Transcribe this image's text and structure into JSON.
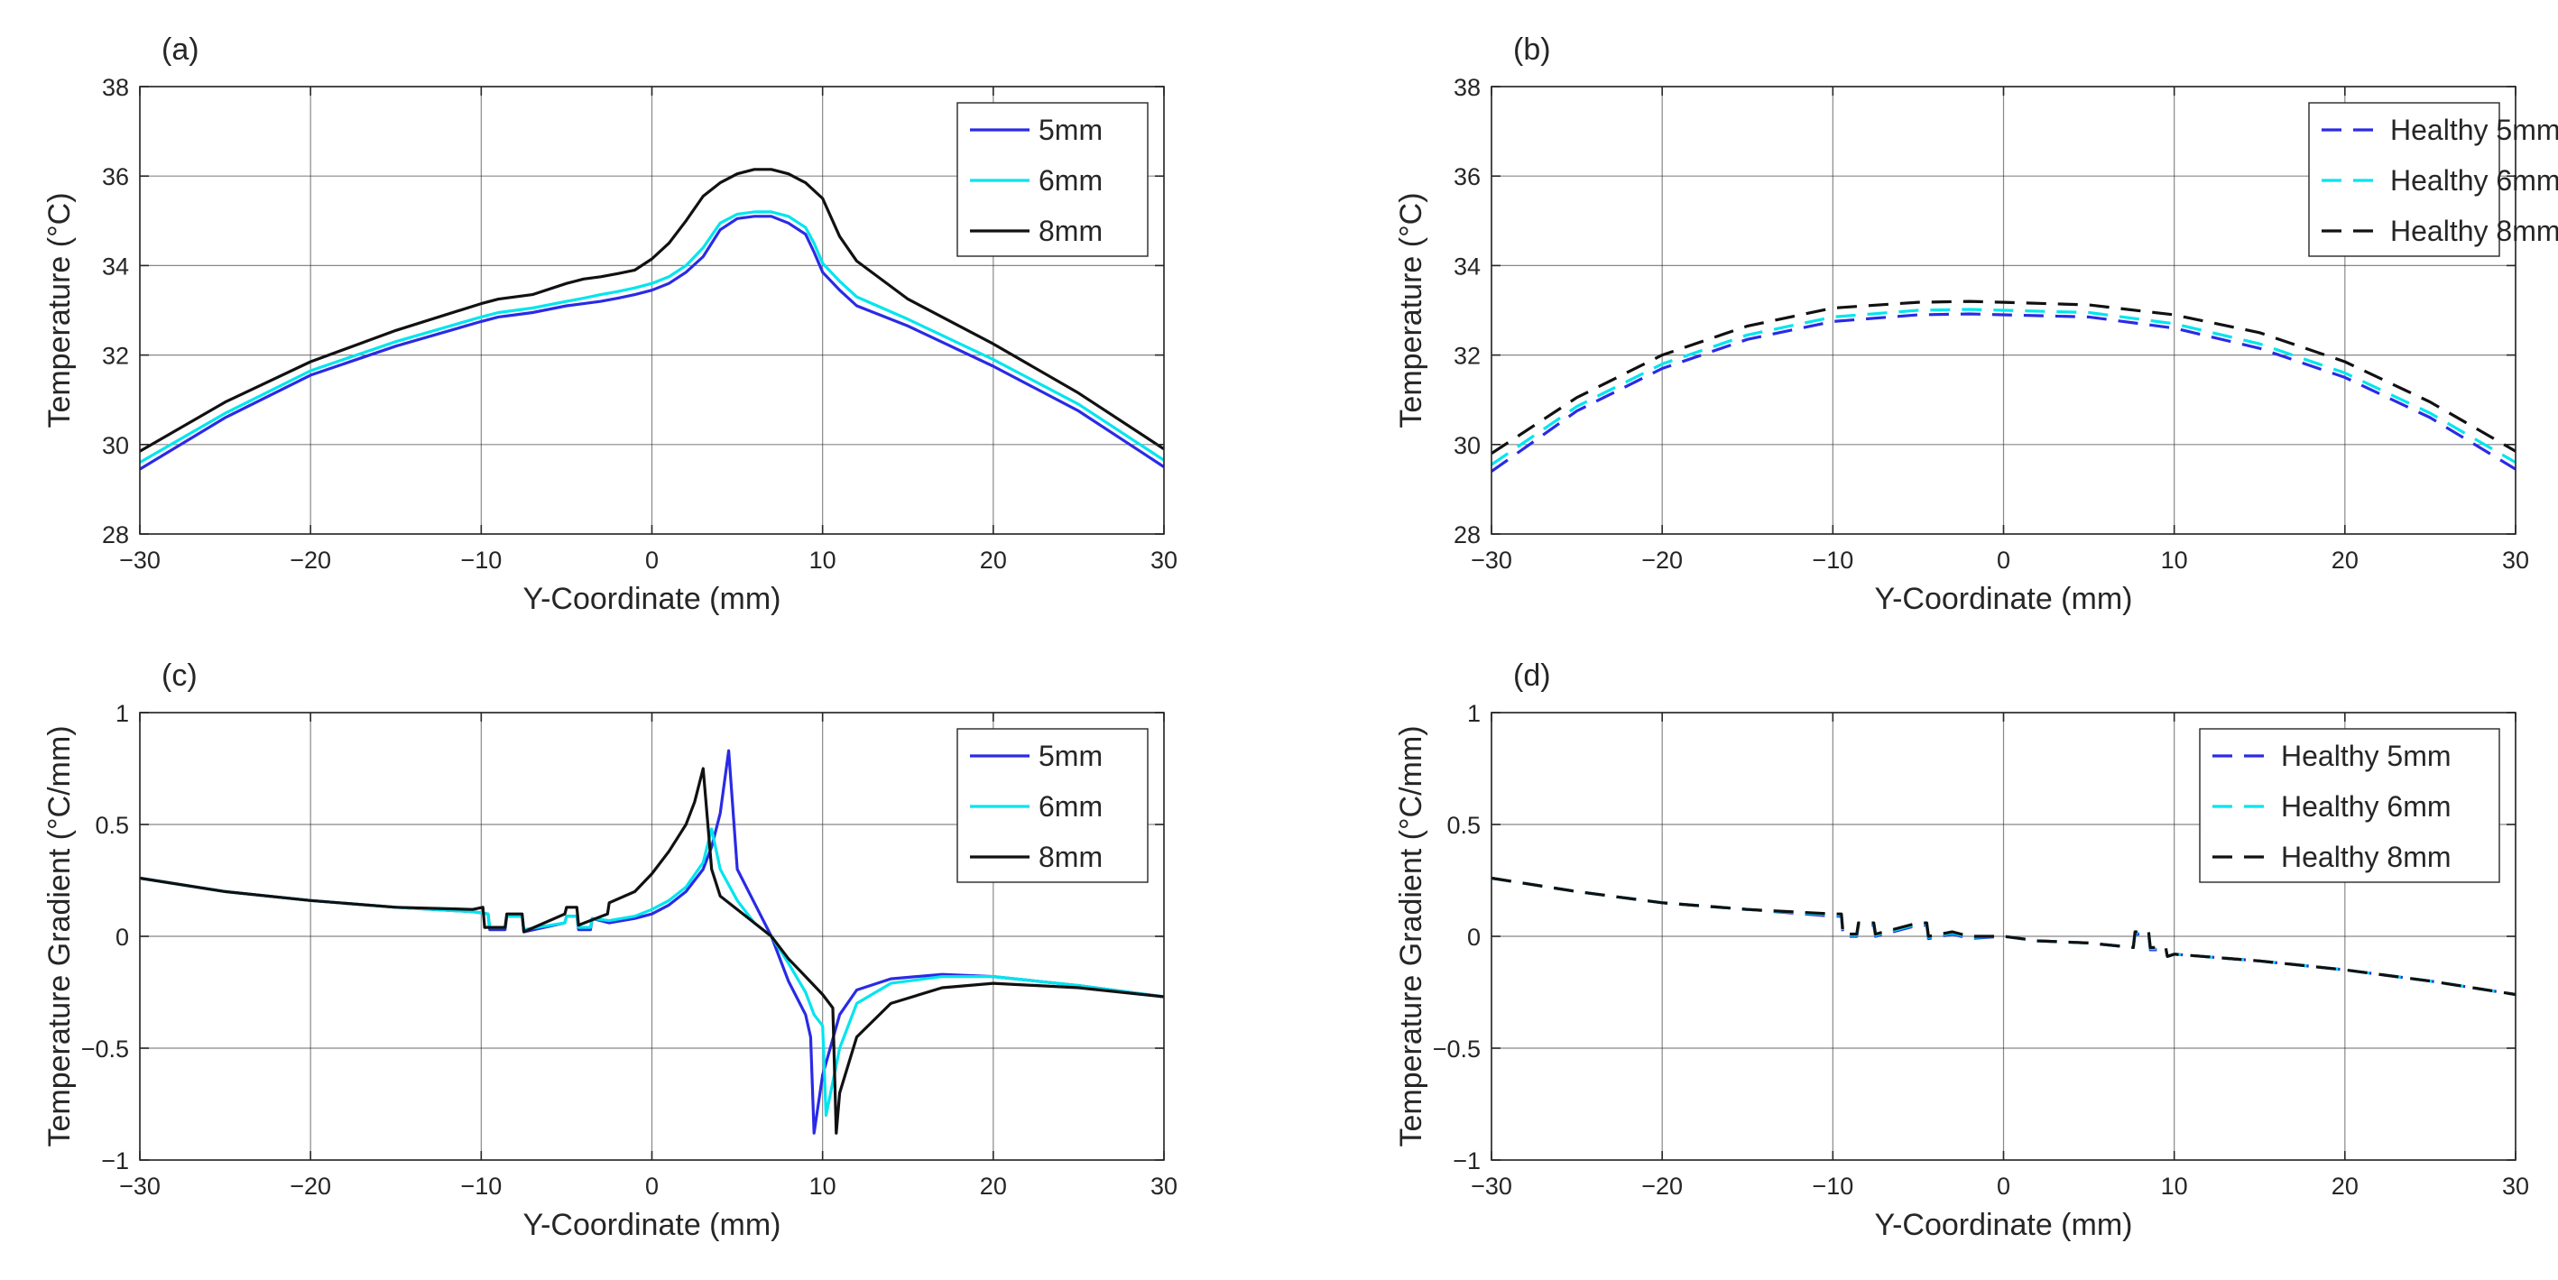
{
  "chart_data": [
    {
      "id": "a",
      "type": "line",
      "panel_label": "(a)",
      "xlabel": "Y-Coordinate (mm)",
      "ylabel": "Temperature (°C)",
      "xlim": [
        -30,
        30
      ],
      "ylim": [
        28,
        38
      ],
      "xticks": [
        -30,
        -20,
        -10,
        0,
        10,
        20,
        30
      ],
      "xtick_labels": [
        "−30",
        "−20",
        "−10",
        "0",
        "10",
        "20",
        "30"
      ],
      "yticks": [
        28,
        30,
        32,
        34,
        36,
        38
      ],
      "ytick_labels": [
        "28",
        "30",
        "32",
        "34",
        "36",
        "38"
      ],
      "grid": true,
      "legend_position": "top-right",
      "series": [
        {
          "name": "5mm",
          "color": "#2a2ae6",
          "dashed": false,
          "x": [
            -30,
            -25,
            -20,
            -15,
            -10,
            -9,
            -8,
            -7,
            -5,
            -4,
            -3,
            -2,
            -1,
            0,
            1,
            2,
            3,
            4,
            5,
            6,
            7,
            8,
            9,
            9.5,
            10,
            11,
            12,
            15,
            20,
            25,
            30
          ],
          "y": [
            29.45,
            30.6,
            31.55,
            32.2,
            32.75,
            32.85,
            32.9,
            32.95,
            33.1,
            33.15,
            33.2,
            33.27,
            33.35,
            33.45,
            33.6,
            33.85,
            34.2,
            34.8,
            35.05,
            35.1,
            35.1,
            34.95,
            34.7,
            34.3,
            33.85,
            33.45,
            33.1,
            32.65,
            31.75,
            30.75,
            29.5
          ]
        },
        {
          "name": "6mm",
          "color": "#00e5ee",
          "dashed": false,
          "x": [
            -30,
            -25,
            -20,
            -15,
            -10,
            -9,
            -8,
            -7,
            -5,
            -4,
            -3,
            -2,
            -1,
            0,
            1,
            2,
            3,
            4,
            5,
            6,
            7,
            8,
            9,
            9.5,
            10,
            11,
            12,
            15,
            20,
            25,
            30
          ],
          "y": [
            29.6,
            30.7,
            31.65,
            32.3,
            32.85,
            32.95,
            33.0,
            33.05,
            33.2,
            33.27,
            33.35,
            33.42,
            33.5,
            33.6,
            33.75,
            34.0,
            34.4,
            34.95,
            35.15,
            35.2,
            35.2,
            35.1,
            34.85,
            34.5,
            34.05,
            33.65,
            33.3,
            32.8,
            31.9,
            30.9,
            29.65
          ]
        },
        {
          "name": "8mm",
          "color": "#111111",
          "dashed": false,
          "x": [
            -30,
            -25,
            -20,
            -15,
            -10,
            -9,
            -8,
            -7,
            -5,
            -4,
            -3,
            -2,
            -1,
            0,
            1,
            2,
            3,
            4,
            5,
            6,
            7,
            8,
            9,
            10,
            11,
            12,
            15,
            20,
            25,
            30
          ],
          "y": [
            29.85,
            30.95,
            31.85,
            32.55,
            33.15,
            33.25,
            33.3,
            33.35,
            33.6,
            33.7,
            33.75,
            33.82,
            33.9,
            34.15,
            34.5,
            35.0,
            35.55,
            35.85,
            36.05,
            36.15,
            36.15,
            36.05,
            35.85,
            35.5,
            34.65,
            34.1,
            33.25,
            32.25,
            31.15,
            29.9
          ]
        }
      ]
    },
    {
      "id": "b",
      "type": "line",
      "panel_label": "(b)",
      "xlabel": "Y-Coordinate (mm)",
      "ylabel": "Temperature (°C)",
      "xlim": [
        -30,
        30
      ],
      "ylim": [
        28,
        38
      ],
      "xticks": [
        -30,
        -20,
        -10,
        0,
        10,
        20,
        30
      ],
      "xtick_labels": [
        "−30",
        "−20",
        "−10",
        "0",
        "10",
        "20",
        "30"
      ],
      "yticks": [
        28,
        30,
        32,
        34,
        36,
        38
      ],
      "ytick_labels": [
        "28",
        "30",
        "32",
        "34",
        "36",
        "38"
      ],
      "grid": true,
      "legend_position": "top-right",
      "series": [
        {
          "name": "Healthy 5mm",
          "color": "#2a2ae6",
          "dashed": true,
          "x": [
            -30,
            -25,
            -20,
            -15,
            -10,
            -5,
            -2,
            0,
            5,
            10,
            15,
            20,
            25,
            30
          ],
          "y": [
            29.4,
            30.75,
            31.7,
            32.35,
            32.75,
            32.9,
            32.92,
            32.9,
            32.85,
            32.6,
            32.15,
            31.5,
            30.6,
            29.45
          ]
        },
        {
          "name": "Healthy 6mm",
          "color": "#00e5ee",
          "dashed": true,
          "x": [
            -30,
            -25,
            -20,
            -15,
            -10,
            -5,
            -2,
            0,
            5,
            10,
            15,
            20,
            25,
            30
          ],
          "y": [
            29.55,
            30.85,
            31.8,
            32.45,
            32.85,
            33.0,
            33.02,
            33.0,
            32.95,
            32.7,
            32.25,
            31.6,
            30.7,
            29.6
          ]
        },
        {
          "name": "Healthy 8mm",
          "color": "#111111",
          "dashed": true,
          "x": [
            -30,
            -25,
            -20,
            -15,
            -10,
            -5,
            -2,
            0,
            5,
            10,
            15,
            20,
            25,
            30
          ],
          "y": [
            29.8,
            31.05,
            32.0,
            32.65,
            33.05,
            33.18,
            33.2,
            33.18,
            33.12,
            32.9,
            32.5,
            31.85,
            30.95,
            29.85
          ]
        }
      ]
    },
    {
      "id": "c",
      "type": "line",
      "panel_label": "(c)",
      "xlabel": "Y-Coordinate (mm)",
      "ylabel": "Temperature Gradient (°C/mm)",
      "xlim": [
        -30,
        30
      ],
      "ylim": [
        -1,
        1
      ],
      "xticks": [
        -30,
        -20,
        -10,
        0,
        10,
        20,
        30
      ],
      "xtick_labels": [
        "−30",
        "−20",
        "−10",
        "0",
        "10",
        "20",
        "30"
      ],
      "yticks": [
        -1,
        -0.5,
        0,
        0.5,
        1
      ],
      "ytick_labels": [
        "−1",
        "−0.5",
        "0",
        "0.5",
        "1"
      ],
      "grid": true,
      "legend_position": "top-right",
      "series": [
        {
          "name": "5mm",
          "color": "#2a2ae6",
          "dashed": false,
          "x": [
            -30,
            -25,
            -20,
            -15,
            -10.5,
            -9.6,
            -9.5,
            -8.6,
            -8.5,
            -7.6,
            -7.5,
            -5.1,
            -5.0,
            -4.4,
            -4.3,
            -3.6,
            -3.5,
            -2.5,
            -1,
            0,
            1,
            2,
            3,
            3.5,
            4,
            4.5,
            5,
            6,
            7,
            8,
            9,
            9.3,
            9.5,
            10,
            11,
            12,
            14,
            17,
            20,
            25,
            30
          ],
          "y": [
            0.26,
            0.2,
            0.16,
            0.13,
            0.11,
            0.1,
            0.03,
            0.03,
            0.09,
            0.09,
            0.02,
            0.06,
            0.09,
            0.09,
            0.03,
            0.03,
            0.08,
            0.06,
            0.08,
            0.1,
            0.14,
            0.2,
            0.3,
            0.4,
            0.55,
            0.83,
            0.3,
            0.15,
            0.0,
            -0.2,
            -0.35,
            -0.45,
            -0.88,
            -0.62,
            -0.35,
            -0.24,
            -0.19,
            -0.17,
            -0.18,
            -0.22,
            -0.27
          ]
        },
        {
          "name": "6mm",
          "color": "#00e5ee",
          "dashed": false,
          "x": [
            -30,
            -25,
            -20,
            -15,
            -10.5,
            -9.6,
            -9.5,
            -8.6,
            -8.5,
            -7.6,
            -7.5,
            -5.1,
            -5.0,
            -4.4,
            -4.3,
            -3.6,
            -3.5,
            -2.5,
            -1,
            0,
            1,
            2,
            3,
            3.5,
            4,
            5,
            6,
            7,
            8,
            9,
            9.5,
            10,
            10.2,
            11,
            12,
            14,
            17,
            20,
            25,
            30
          ],
          "y": [
            0.26,
            0.2,
            0.16,
            0.13,
            0.11,
            0.1,
            0.04,
            0.04,
            0.09,
            0.09,
            0.03,
            0.06,
            0.09,
            0.09,
            0.04,
            0.04,
            0.08,
            0.07,
            0.09,
            0.12,
            0.16,
            0.22,
            0.33,
            0.48,
            0.3,
            0.16,
            0.06,
            0.0,
            -0.12,
            -0.25,
            -0.35,
            -0.4,
            -0.8,
            -0.5,
            -0.3,
            -0.21,
            -0.18,
            -0.18,
            -0.22,
            -0.27
          ]
        },
        {
          "name": "8mm",
          "color": "#111111",
          "dashed": false,
          "x": [
            -30,
            -25,
            -20,
            -15,
            -10.5,
            -9.9,
            -9.8,
            -8.6,
            -8.5,
            -7.6,
            -7.5,
            -5.1,
            -5.0,
            -4.4,
            -4.3,
            -2.6,
            -2.5,
            -1,
            0,
            1,
            2,
            2.5,
            3,
            3.5,
            4,
            5,
            6,
            7,
            8,
            9,
            10,
            10.6,
            10.8,
            11,
            12,
            14,
            17,
            20,
            25,
            30
          ],
          "y": [
            0.26,
            0.2,
            0.16,
            0.13,
            0.12,
            0.13,
            0.04,
            0.04,
            0.1,
            0.1,
            0.02,
            0.1,
            0.13,
            0.13,
            0.05,
            0.1,
            0.15,
            0.2,
            0.28,
            0.38,
            0.5,
            0.6,
            0.75,
            0.3,
            0.18,
            0.12,
            0.06,
            0.0,
            -0.1,
            -0.18,
            -0.26,
            -0.32,
            -0.88,
            -0.7,
            -0.45,
            -0.3,
            -0.23,
            -0.21,
            -0.23,
            -0.27
          ]
        }
      ]
    },
    {
      "id": "d",
      "type": "line",
      "panel_label": "(d)",
      "xlabel": "Y-Coordinate (mm)",
      "ylabel": "Temperature Gradient (°C/mm)",
      "xlim": [
        -30,
        30
      ],
      "ylim": [
        -1,
        1
      ],
      "xticks": [
        -30,
        -20,
        -10,
        0,
        10,
        20,
        30
      ],
      "xtick_labels": [
        "−30",
        "−20",
        "−10",
        "0",
        "10",
        "20",
        "30"
      ],
      "yticks": [
        -1,
        -0.5,
        0,
        0.5,
        1
      ],
      "ytick_labels": [
        "−1",
        "−0.5",
        "0",
        "0.5",
        "1"
      ],
      "grid": true,
      "legend_position": "top-right",
      "series": [
        {
          "name": "Healthy 5mm",
          "color": "#2a2ae6",
          "dashed": true,
          "x": [
            -30,
            -25,
            -20,
            -15,
            -10,
            -9.5,
            -9.4,
            -8.6,
            -8.5,
            -7.6,
            -7.5,
            -5,
            -4.5,
            -4.4,
            -3,
            -2,
            0,
            2,
            5,
            7.6,
            7.7,
            8.5,
            8.6,
            9.5,
            9.6,
            10,
            15,
            20,
            25,
            30
          ],
          "y": [
            0.26,
            0.2,
            0.15,
            0.12,
            0.09,
            0.09,
            0.0,
            0.0,
            0.05,
            0.05,
            0.0,
            0.05,
            0.05,
            -0.01,
            0.01,
            -0.01,
            0.0,
            -0.02,
            -0.03,
            -0.05,
            0.01,
            0.01,
            -0.06,
            -0.06,
            -0.09,
            -0.08,
            -0.11,
            -0.15,
            -0.2,
            -0.26
          ]
        },
        {
          "name": "Healthy 6mm",
          "color": "#00e5ee",
          "dashed": true,
          "x": [
            -30,
            -25,
            -20,
            -15,
            -10,
            -9.5,
            -9.4,
            -8.6,
            -8.5,
            -7.6,
            -7.5,
            -5,
            -4.5,
            -4.4,
            -3,
            -2,
            0,
            2,
            5,
            7.6,
            7.7,
            8.5,
            8.6,
            9.5,
            9.6,
            10,
            15,
            20,
            25,
            30
          ],
          "y": [
            0.26,
            0.2,
            0.15,
            0.12,
            0.095,
            0.095,
            0.005,
            0.005,
            0.055,
            0.055,
            0.005,
            0.055,
            0.055,
            -0.005,
            0.015,
            -0.005,
            0.0,
            -0.02,
            -0.03,
            -0.05,
            0.015,
            0.015,
            -0.055,
            -0.055,
            -0.09,
            -0.08,
            -0.11,
            -0.15,
            -0.2,
            -0.26
          ]
        },
        {
          "name": "Healthy 8mm",
          "color": "#111111",
          "dashed": true,
          "x": [
            -30,
            -25,
            -20,
            -15,
            -10,
            -9.5,
            -9.4,
            -8.6,
            -8.5,
            -7.6,
            -7.5,
            -5,
            -4.5,
            -4.4,
            -3,
            -2,
            0,
            2,
            5,
            7.6,
            7.7,
            8.5,
            8.6,
            9.5,
            9.6,
            10,
            15,
            20,
            25,
            30
          ],
          "y": [
            0.26,
            0.2,
            0.15,
            0.12,
            0.1,
            0.1,
            0.01,
            0.01,
            0.06,
            0.06,
            0.01,
            0.06,
            0.06,
            0.0,
            0.02,
            0.0,
            0.0,
            -0.02,
            -0.03,
            -0.05,
            0.02,
            0.02,
            -0.05,
            -0.05,
            -0.09,
            -0.08,
            -0.11,
            -0.15,
            -0.2,
            -0.26
          ]
        }
      ]
    }
  ]
}
